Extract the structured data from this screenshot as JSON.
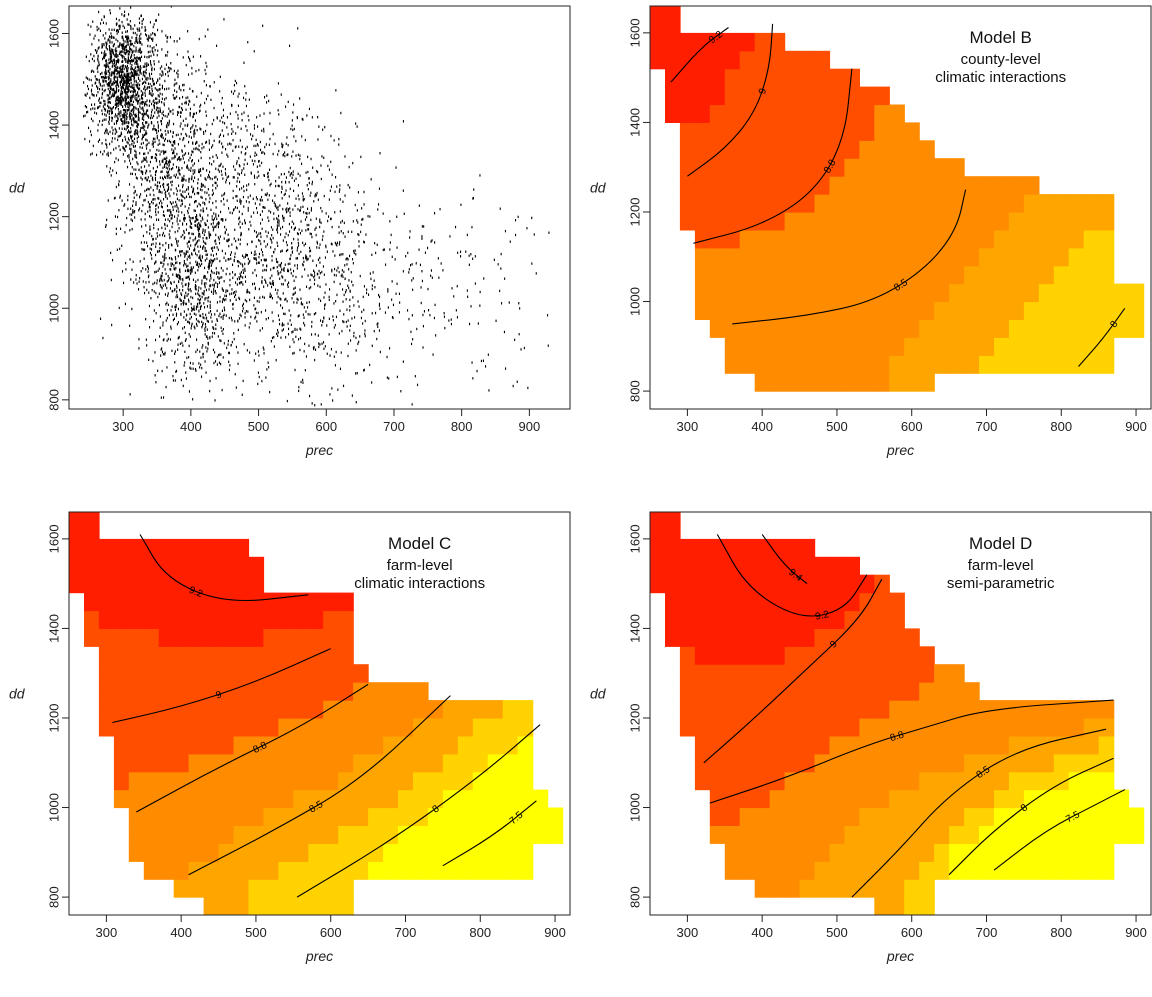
{
  "chart_data": [
    {
      "id": "A",
      "type": "scatter",
      "title": "",
      "subtitle_lines": [],
      "xlabel": "prec",
      "ylabel": "dd",
      "xlim": [
        220,
        960
      ],
      "ylim": [
        780,
        1660
      ],
      "xticks": [
        "300",
        "400",
        "500",
        "600",
        "700",
        "800",
        "900"
      ],
      "yticks": [
        "800",
        "1000",
        "1200",
        "1400",
        "1600"
      ],
      "clusters": [
        {
          "cx": 300,
          "cy": 1500,
          "sx": 25,
          "sy": 70,
          "n": 1300
        },
        {
          "cx": 360,
          "cy": 1330,
          "sx": 40,
          "sy": 130,
          "n": 900
        },
        {
          "cx": 400,
          "cy": 1050,
          "sx": 35,
          "sy": 110,
          "n": 700
        },
        {
          "cx": 480,
          "cy": 1250,
          "sx": 70,
          "sy": 160,
          "n": 900
        },
        {
          "cx": 560,
          "cy": 1060,
          "sx": 60,
          "sy": 120,
          "n": 550
        },
        {
          "cx": 700,
          "cy": 1060,
          "sx": 90,
          "sy": 120,
          "n": 220
        },
        {
          "cx": 850,
          "cy": 1000,
          "sx": 60,
          "sy": 120,
          "n": 40
        }
      ]
    },
    {
      "id": "B",
      "type": "heatmap",
      "title": "Model B",
      "subtitle_lines": [
        "county-level",
        "climatic interactions"
      ],
      "xlabel": "prec",
      "ylabel": "dd",
      "xlim": [
        250,
        920
      ],
      "ylim": [
        760,
        1660
      ],
      "xticks": [
        "300",
        "400",
        "500",
        "600",
        "700",
        "800",
        "900"
      ],
      "yticks": [
        "800",
        "1000",
        "1200",
        "1400",
        "1600"
      ],
      "fill_colors": [
        "#FFF9C4",
        "#FFFF00",
        "#FFD200",
        "#FFA500",
        "#FF8C00",
        "#FF4E00",
        "#FF1E00"
      ],
      "color_breaks": [
        7.5,
        8,
        8.25,
        8.5,
        8.8,
        9.05
      ],
      "contours": [
        {
          "label": "9.2",
          "points": [
            [
              278,
              1490
            ],
            [
              320,
              1570
            ],
            [
              355,
              1612
            ]
          ]
        },
        {
          "label": "9",
          "points": [
            [
              300,
              1280
            ],
            [
              350,
              1340
            ],
            [
              390,
              1420
            ],
            [
              410,
              1520
            ],
            [
              414,
              1620
            ]
          ]
        },
        {
          "label": "8.8",
          "points": [
            [
              308,
              1130
            ],
            [
              400,
              1170
            ],
            [
              470,
              1245
            ],
            [
              510,
              1360
            ],
            [
              520,
              1520
            ]
          ]
        },
        {
          "label": "8.5",
          "points": [
            [
              360,
              950
            ],
            [
              460,
              968
            ],
            [
              550,
              1000
            ],
            [
              620,
              1075
            ],
            [
              660,
              1160
            ],
            [
              672,
              1250
            ]
          ]
        },
        {
          "label": "8",
          "points": [
            [
              823,
              855
            ],
            [
              855,
              915
            ],
            [
              885,
              985
            ]
          ]
        }
      ]
    },
    {
      "id": "C",
      "type": "heatmap",
      "title": "Model C",
      "subtitle_lines": [
        "farm-level",
        "climatic interactions"
      ],
      "xlabel": "prec",
      "ylabel": "dd",
      "xlim": [
        250,
        920
      ],
      "ylim": [
        760,
        1660
      ],
      "xticks": [
        "300",
        "400",
        "500",
        "600",
        "700",
        "800",
        "900"
      ],
      "yticks": [
        "800",
        "1000",
        "1200",
        "1400",
        "1600"
      ],
      "fill_colors": [
        "#FFF9C4",
        "#FFFF00",
        "#FFD200",
        "#FFA500",
        "#FF8C00",
        "#FF4E00",
        "#FF1E00"
      ],
      "color_breaks": [
        7.5,
        8,
        8.25,
        8.5,
        8.8,
        9.05
      ],
      "contours": [
        {
          "label": "9.2",
          "points": [
            [
              345,
              1610
            ],
            [
              380,
              1510
            ],
            [
              460,
              1455
            ],
            [
              570,
              1475
            ]
          ]
        },
        {
          "label": "9",
          "points": [
            [
              308,
              1190
            ],
            [
              400,
              1225
            ],
            [
              500,
              1280
            ],
            [
              600,
              1355
            ]
          ]
        },
        {
          "label": "8.8",
          "points": [
            [
              340,
              990
            ],
            [
              450,
              1090
            ],
            [
              560,
              1180
            ],
            [
              650,
              1275
            ]
          ]
        },
        {
          "label": "8.5",
          "points": [
            [
              410,
              850
            ],
            [
              520,
              945
            ],
            [
              640,
              1060
            ],
            [
              760,
              1250
            ]
          ]
        },
        {
          "label": "8",
          "points": [
            [
              555,
              800
            ],
            [
              680,
              925
            ],
            [
              800,
              1070
            ],
            [
              880,
              1185
            ]
          ]
        },
        {
          "label": "7.5",
          "points": [
            [
              750,
              870
            ],
            [
              820,
              940
            ],
            [
              875,
              1015
            ]
          ]
        }
      ]
    },
    {
      "id": "D",
      "type": "heatmap",
      "title": "Model D",
      "subtitle_lines": [
        "farm-level",
        "semi-parametric"
      ],
      "xlabel": "prec",
      "ylabel": "dd",
      "xlim": [
        250,
        920
      ],
      "ylim": [
        760,
        1660
      ],
      "xticks": [
        "300",
        "400",
        "500",
        "600",
        "700",
        "800",
        "900"
      ],
      "yticks": [
        "800",
        "1000",
        "1200",
        "1400",
        "1600"
      ],
      "fill_colors": [
        "#FFF9C4",
        "#FFFF00",
        "#FFD200",
        "#FFA500",
        "#FF8C00",
        "#FF4E00",
        "#FF1E00"
      ],
      "color_breaks": [
        7.5,
        8,
        8.25,
        8.5,
        8.8,
        9.05
      ],
      "contours": [
        {
          "label": "9.4",
          "points": [
            [
              400,
              1610
            ],
            [
              430,
              1540
            ],
            [
              460,
              1500
            ]
          ]
        },
        {
          "label": "9.2",
          "points": [
            [
              340,
              1610
            ],
            [
              380,
              1490
            ],
            [
              450,
              1420
            ],
            [
              510,
              1440
            ],
            [
              540,
              1520
            ]
          ]
        },
        {
          "label": "9",
          "points": [
            [
              322,
              1100
            ],
            [
              390,
              1200
            ],
            [
              460,
              1310
            ],
            [
              530,
              1420
            ],
            [
              560,
              1510
            ]
          ]
        },
        {
          "label": "8.8",
          "points": [
            [
              330,
              1010
            ],
            [
              430,
              1065
            ],
            [
              540,
              1140
            ],
            [
              620,
              1180
            ],
            [
              700,
              1220
            ],
            [
              870,
              1240
            ]
          ]
        },
        {
          "label": "8.5",
          "points": [
            [
              520,
              800
            ],
            [
              580,
              900
            ],
            [
              650,
              1030
            ],
            [
              740,
              1130
            ],
            [
              860,
              1175
            ]
          ]
        },
        {
          "label": "8",
          "points": [
            [
              650,
              850
            ],
            [
              710,
              950
            ],
            [
              790,
              1050
            ],
            [
              870,
              1110
            ]
          ]
        },
        {
          "label": "7.5",
          "points": [
            [
              710,
              860
            ],
            [
              780,
              950
            ],
            [
              850,
              1010
            ],
            [
              885,
              1040
            ]
          ]
        }
      ]
    }
  ]
}
